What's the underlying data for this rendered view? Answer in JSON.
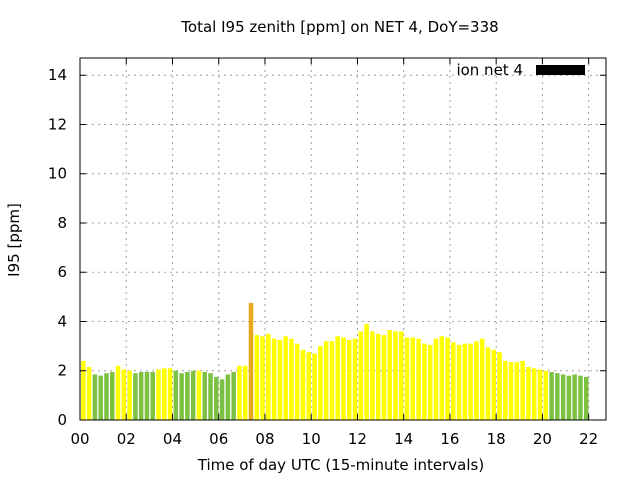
{
  "chart_data": {
    "type": "bar",
    "title": "Total I95 zenith [ppm] on NET 4, DoY=338",
    "xlabel": "Time of day UTC (15-minute intervals)",
    "ylabel": "I95 [ppm]",
    "xlim": [
      0,
      22.75
    ],
    "ylim": [
      0,
      14.7
    ],
    "x_ticks": [
      "00",
      "02",
      "04",
      "06",
      "08",
      "10",
      "12",
      "14",
      "16",
      "18",
      "20",
      "22"
    ],
    "x_tick_values": [
      0,
      2,
      4,
      6,
      8,
      10,
      12,
      14,
      16,
      18,
      20,
      22
    ],
    "y_ticks": [
      0,
      2,
      4,
      6,
      8,
      10,
      12,
      14
    ],
    "grid": true,
    "legend": {
      "label": "ion net 4",
      "placement": "top-right",
      "color": "#000000"
    },
    "colors": {
      "low": "#7dc143",
      "medium": "#ffff00",
      "high": "#e6a91c"
    },
    "bar_interval_hours": 0.25,
    "series": [
      {
        "values": [
          2.4,
          2.15,
          1.85,
          1.8,
          1.9,
          1.95,
          2.2,
          2.05,
          2.0,
          1.9,
          1.95,
          1.95,
          1.95,
          2.05,
          2.1,
          2.1,
          2.0,
          1.9,
          1.95,
          2.0,
          2.0,
          1.95,
          1.9,
          1.75,
          1.65,
          1.85,
          1.95,
          2.2,
          2.2,
          4.75,
          3.45,
          3.4,
          3.5,
          3.3,
          3.25,
          3.4,
          3.3,
          3.1,
          2.85,
          2.75,
          2.7,
          3.0,
          3.2,
          3.2,
          3.4,
          3.35,
          3.25,
          3.3,
          3.6,
          3.9,
          3.6,
          3.5,
          3.45,
          3.65,
          3.6,
          3.6,
          3.35,
          3.35,
          3.3,
          3.1,
          3.05,
          3.3,
          3.4,
          3.35,
          3.15,
          3.05,
          3.1,
          3.1,
          3.2,
          3.3,
          2.95,
          2.85,
          2.75,
          2.4,
          2.35,
          2.35,
          2.4,
          2.15,
          2.1,
          2.05,
          2.0,
          1.95,
          1.9,
          1.85,
          1.8,
          1.85,
          1.8,
          1.75
        ],
        "levels": [
          "medium",
          "medium",
          "low",
          "low",
          "low",
          "low",
          "medium",
          "medium",
          "medium",
          "low",
          "low",
          "low",
          "low",
          "medium",
          "medium",
          "medium",
          "low",
          "low",
          "low",
          "low",
          "medium",
          "low",
          "low",
          "low",
          "low",
          "low",
          "low",
          "medium",
          "medium",
          "high",
          "medium",
          "medium",
          "medium",
          "medium",
          "medium",
          "medium",
          "medium",
          "medium",
          "medium",
          "medium",
          "medium",
          "medium",
          "medium",
          "medium",
          "medium",
          "medium",
          "medium",
          "medium",
          "medium",
          "medium",
          "medium",
          "medium",
          "medium",
          "medium",
          "medium",
          "medium",
          "medium",
          "medium",
          "medium",
          "medium",
          "medium",
          "medium",
          "medium",
          "medium",
          "medium",
          "medium",
          "medium",
          "medium",
          "medium",
          "medium",
          "medium",
          "medium",
          "medium",
          "medium",
          "medium",
          "medium",
          "medium",
          "medium",
          "medium",
          "medium",
          "medium",
          "low",
          "low",
          "low",
          "low",
          "low",
          "low",
          "low"
        ]
      }
    ]
  }
}
